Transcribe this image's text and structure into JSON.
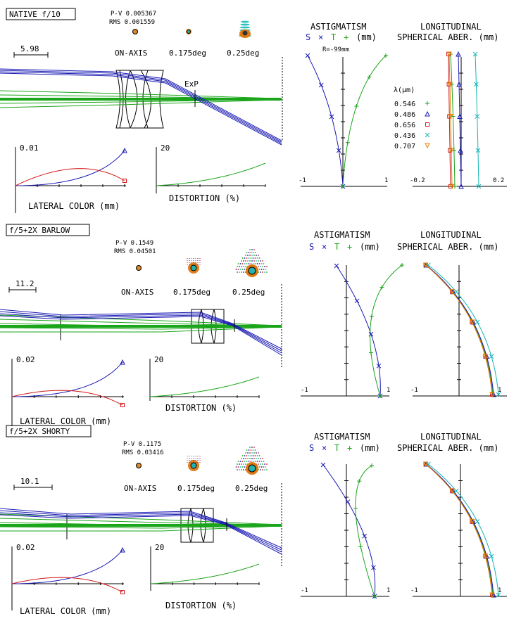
{
  "panels": [
    {
      "title": "NATIVE f/10",
      "pv": "P-V 0.005367",
      "rms": "RMS 0.001559",
      "scale": "5.98",
      "field_labels": [
        "ON-AXIS",
        "0.175deg",
        "0.25deg"
      ],
      "exp": "ExP",
      "lat_top": "0.01",
      "lat_label": "LATERAL COLOR (mm)",
      "dist_top": "20",
      "dist_label": "DISTORTION (%)",
      "astig_title": "ASTIGMATISM",
      "astig_sub": "(mm)",
      "astig_r": "R=-99mm",
      "astig_left": "-1",
      "astig_right": "1",
      "long_title": "LONGITUDINAL",
      "long_sub": "SPHERICAL ABER. (mm)",
      "long_left": "-0.2",
      "long_right": "0.2",
      "legend_title": "λ(μm)",
      "legend": [
        "0.546",
        "0.486",
        "0.656",
        "0.436",
        "0.707"
      ]
    },
    {
      "title": "f/5+2X BARLOW",
      "pv": "P-V 0.1549",
      "rms": "RMS 0.04501",
      "scale": "11.2",
      "field_labels": [
        "ON-AXIS",
        "0.175deg",
        "0.25deg"
      ],
      "lat_top": "0.02",
      "lat_label": "LATERAL COLOR (mm)",
      "dist_top": "20",
      "dist_label": "DISTORTION (%)",
      "astig_title": "ASTIGMATISM",
      "astig_sub": "(mm)",
      "astig_left": "-1",
      "astig_right": "1",
      "long_title": "LONGITUDINAL",
      "long_sub": "SPHERICAL ABER. (mm)",
      "long_left": "-1",
      "long_right": "1"
    },
    {
      "title": "f/5+2X SHORTY",
      "pv": "P-V 0.1175",
      "rms": "RMS 0.03416",
      "scale": "10.1",
      "field_labels": [
        "ON-AXIS",
        "0.175deg",
        "0.25deg"
      ],
      "lat_top": "0.02",
      "lat_label": "LATERAL COLOR (mm)",
      "dist_top": "20",
      "dist_label": "DISTORTION (%)",
      "astig_title": "ASTIGMATISM",
      "astig_sub": "(mm)",
      "astig_left": "-1",
      "astig_right": "1",
      "long_title": "LONGITUDINAL",
      "long_sub": "SPHERICAL ABER. (mm)",
      "long_left": "-1",
      "long_right": "1"
    }
  ],
  "stp": {
    "s": "S",
    "x": "×",
    "t": "T",
    "p": "+"
  },
  "colors": {
    "blue": "#1a1ab4",
    "green": "#1aa51a",
    "red": "#d21a1a",
    "cyan": "#14b4b4",
    "orange": "#e68200",
    "black": "#000000"
  }
}
